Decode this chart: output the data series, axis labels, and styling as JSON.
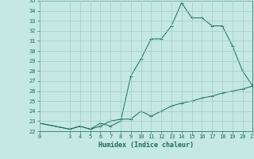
{
  "xlabel": "Humidex (Indice chaleur)",
  "bg_color": "#c5e8e3",
  "grid_color": "#9ecdc5",
  "line_color": "#1a6b5a",
  "spine_color": "#2a7a6a",
  "xlim": [
    0,
    21
  ],
  "ylim": [
    22,
    35
  ],
  "yticks": [
    22,
    23,
    24,
    25,
    26,
    27,
    28,
    29,
    30,
    31,
    32,
    33,
    34,
    35
  ],
  "xticks": [
    0,
    3,
    4,
    5,
    6,
    7,
    8,
    9,
    10,
    11,
    12,
    13,
    14,
    15,
    16,
    17,
    18,
    19,
    20,
    21
  ],
  "line1_x": [
    0,
    3,
    4,
    5,
    6,
    7,
    8,
    9,
    10,
    11,
    12,
    13,
    14,
    15,
    16,
    17,
    18,
    19,
    20,
    21
  ],
  "line1_y": [
    22.8,
    22.2,
    22.5,
    22.2,
    22.5,
    23.0,
    23.2,
    23.2,
    24.0,
    23.5,
    24.0,
    24.5,
    24.8,
    25.0,
    25.3,
    25.5,
    25.8,
    26.0,
    26.2,
    26.5
  ],
  "line2_x": [
    0,
    3,
    4,
    5,
    6,
    7,
    8,
    9,
    10,
    11,
    12,
    13,
    14,
    15,
    16,
    17,
    18,
    19,
    20,
    21
  ],
  "line2_y": [
    22.8,
    22.2,
    22.5,
    22.2,
    22.8,
    22.5,
    23.0,
    27.5,
    29.2,
    31.2,
    31.2,
    32.5,
    34.8,
    33.3,
    33.3,
    32.5,
    32.5,
    30.5,
    28.0,
    26.5
  ]
}
